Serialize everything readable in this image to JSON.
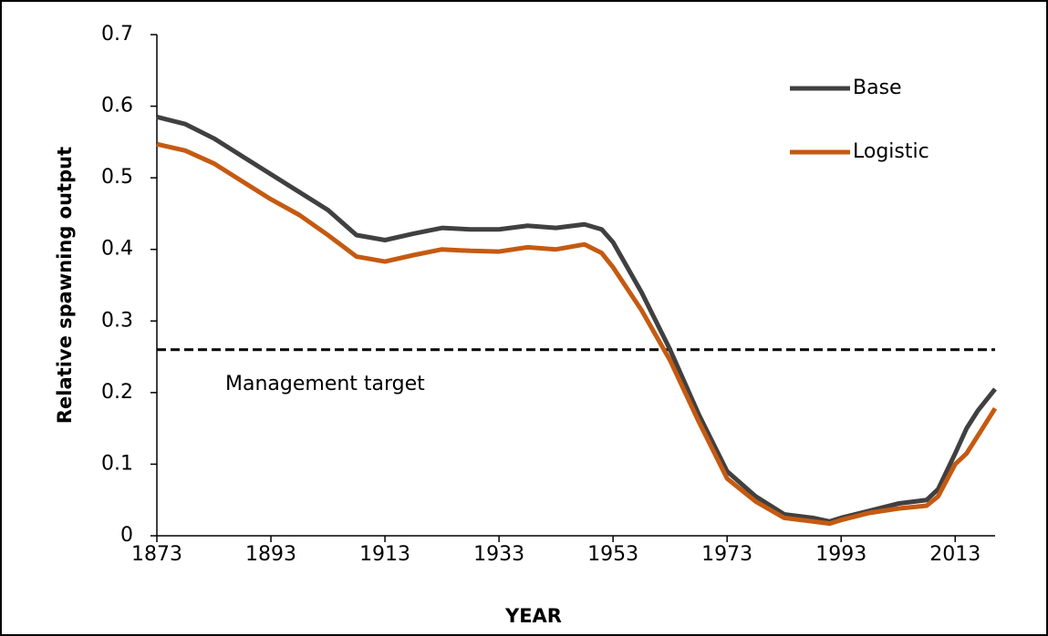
{
  "chart_data": {
    "type": "line",
    "x_label": "YEAR",
    "y_label": "Relative spawning output",
    "x": [
      1873,
      1878,
      1883,
      1888,
      1893,
      1898,
      1903,
      1908,
      1913,
      1918,
      1923,
      1928,
      1933,
      1938,
      1943,
      1948,
      1951,
      1953,
      1958,
      1963,
      1968,
      1973,
      1978,
      1983,
      1988,
      1991,
      1993,
      1998,
      2003,
      2008,
      2010,
      2013,
      2015,
      2017,
      2020
    ],
    "series": [
      {
        "name": "Base",
        "color": "#404040",
        "values": [
          0.585,
          0.575,
          0.555,
          0.53,
          0.505,
          0.48,
          0.455,
          0.42,
          0.413,
          0.422,
          0.43,
          0.428,
          0.428,
          0.433,
          0.43,
          0.435,
          0.428,
          0.41,
          0.34,
          0.26,
          0.17,
          0.09,
          0.055,
          0.03,
          0.025,
          0.02,
          0.025,
          0.035,
          0.045,
          0.05,
          0.065,
          0.115,
          0.15,
          0.175,
          0.205
        ]
      },
      {
        "name": "Logistic",
        "color": "#c55a11",
        "values": [
          0.547,
          0.538,
          0.52,
          0.495,
          0.47,
          0.448,
          0.42,
          0.39,
          0.383,
          0.392,
          0.4,
          0.398,
          0.397,
          0.403,
          0.4,
          0.407,
          0.395,
          0.375,
          0.315,
          0.245,
          0.16,
          0.08,
          0.048,
          0.025,
          0.02,
          0.017,
          0.022,
          0.032,
          0.038,
          0.042,
          0.055,
          0.1,
          0.115,
          0.14,
          0.178
        ]
      }
    ],
    "reference_line": {
      "value": 0.26,
      "label": "Management target"
    },
    "xlim": [
      1873,
      2020
    ],
    "xticks": [
      1873,
      1893,
      1913,
      1933,
      1953,
      1973,
      1993,
      2013
    ],
    "ylim": [
      0,
      0.7
    ],
    "yticks": [
      0,
      0.1,
      0.2,
      0.3,
      0.4,
      0.5,
      0.6,
      0.7
    ],
    "grid": false,
    "legend": "upper right"
  }
}
